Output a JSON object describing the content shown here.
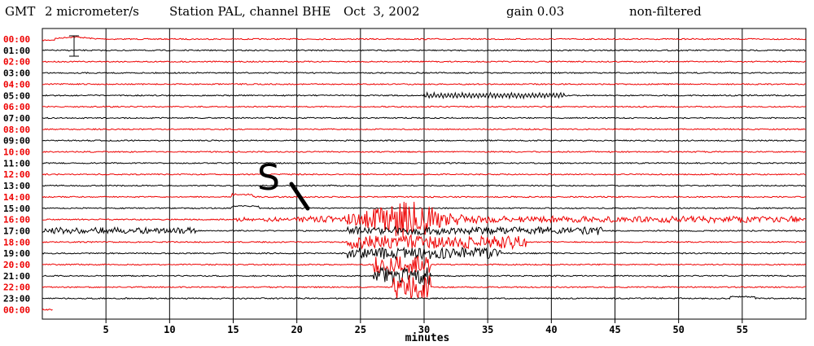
{
  "header": {
    "timezone": "GMT",
    "scale": "2 micrometer/s",
    "station": "Station PAL, channel BHE",
    "separator": "-",
    "date": "Oct  3, 2002",
    "gain": "gain 0.03",
    "filter": "non-filtered"
  },
  "annotation": {
    "phase_label": "S"
  },
  "colors": {
    "red": "#ee0000",
    "black": "#000000"
  },
  "chart_data": {
    "type": "line",
    "xlabel": "minutes",
    "xlim": [
      0,
      60
    ],
    "x_ticks": [
      "5",
      "10",
      "15",
      "20",
      "25",
      "30",
      "35",
      "40",
      "45",
      "50",
      "55"
    ],
    "rows": [
      {
        "label": "00:00",
        "color": "red"
      },
      {
        "label": "01:00",
        "color": "black"
      },
      {
        "label": "02:00",
        "color": "red"
      },
      {
        "label": "03:00",
        "color": "black"
      },
      {
        "label": "04:00",
        "color": "red"
      },
      {
        "label": "05:00",
        "color": "black"
      },
      {
        "label": "06:00",
        "color": "red"
      },
      {
        "label": "07:00",
        "color": "black"
      },
      {
        "label": "08:00",
        "color": "red"
      },
      {
        "label": "09:00",
        "color": "black"
      },
      {
        "label": "10:00",
        "color": "red"
      },
      {
        "label": "11:00",
        "color": "black"
      },
      {
        "label": "12:00",
        "color": "red"
      },
      {
        "label": "13:00",
        "color": "black"
      },
      {
        "label": "14:00",
        "color": "red"
      },
      {
        "label": "15:00",
        "color": "black"
      },
      {
        "label": "16:00",
        "color": "red"
      },
      {
        "label": "17:00",
        "color": "black"
      },
      {
        "label": "18:00",
        "color": "red"
      },
      {
        "label": "19:00",
        "color": "black"
      },
      {
        "label": "20:00",
        "color": "red"
      },
      {
        "label": "21:00",
        "color": "black"
      },
      {
        "label": "22:00",
        "color": "red"
      },
      {
        "label": "23:00",
        "color": "black"
      },
      {
        "label": "00:00",
        "color": "red"
      }
    ]
  }
}
